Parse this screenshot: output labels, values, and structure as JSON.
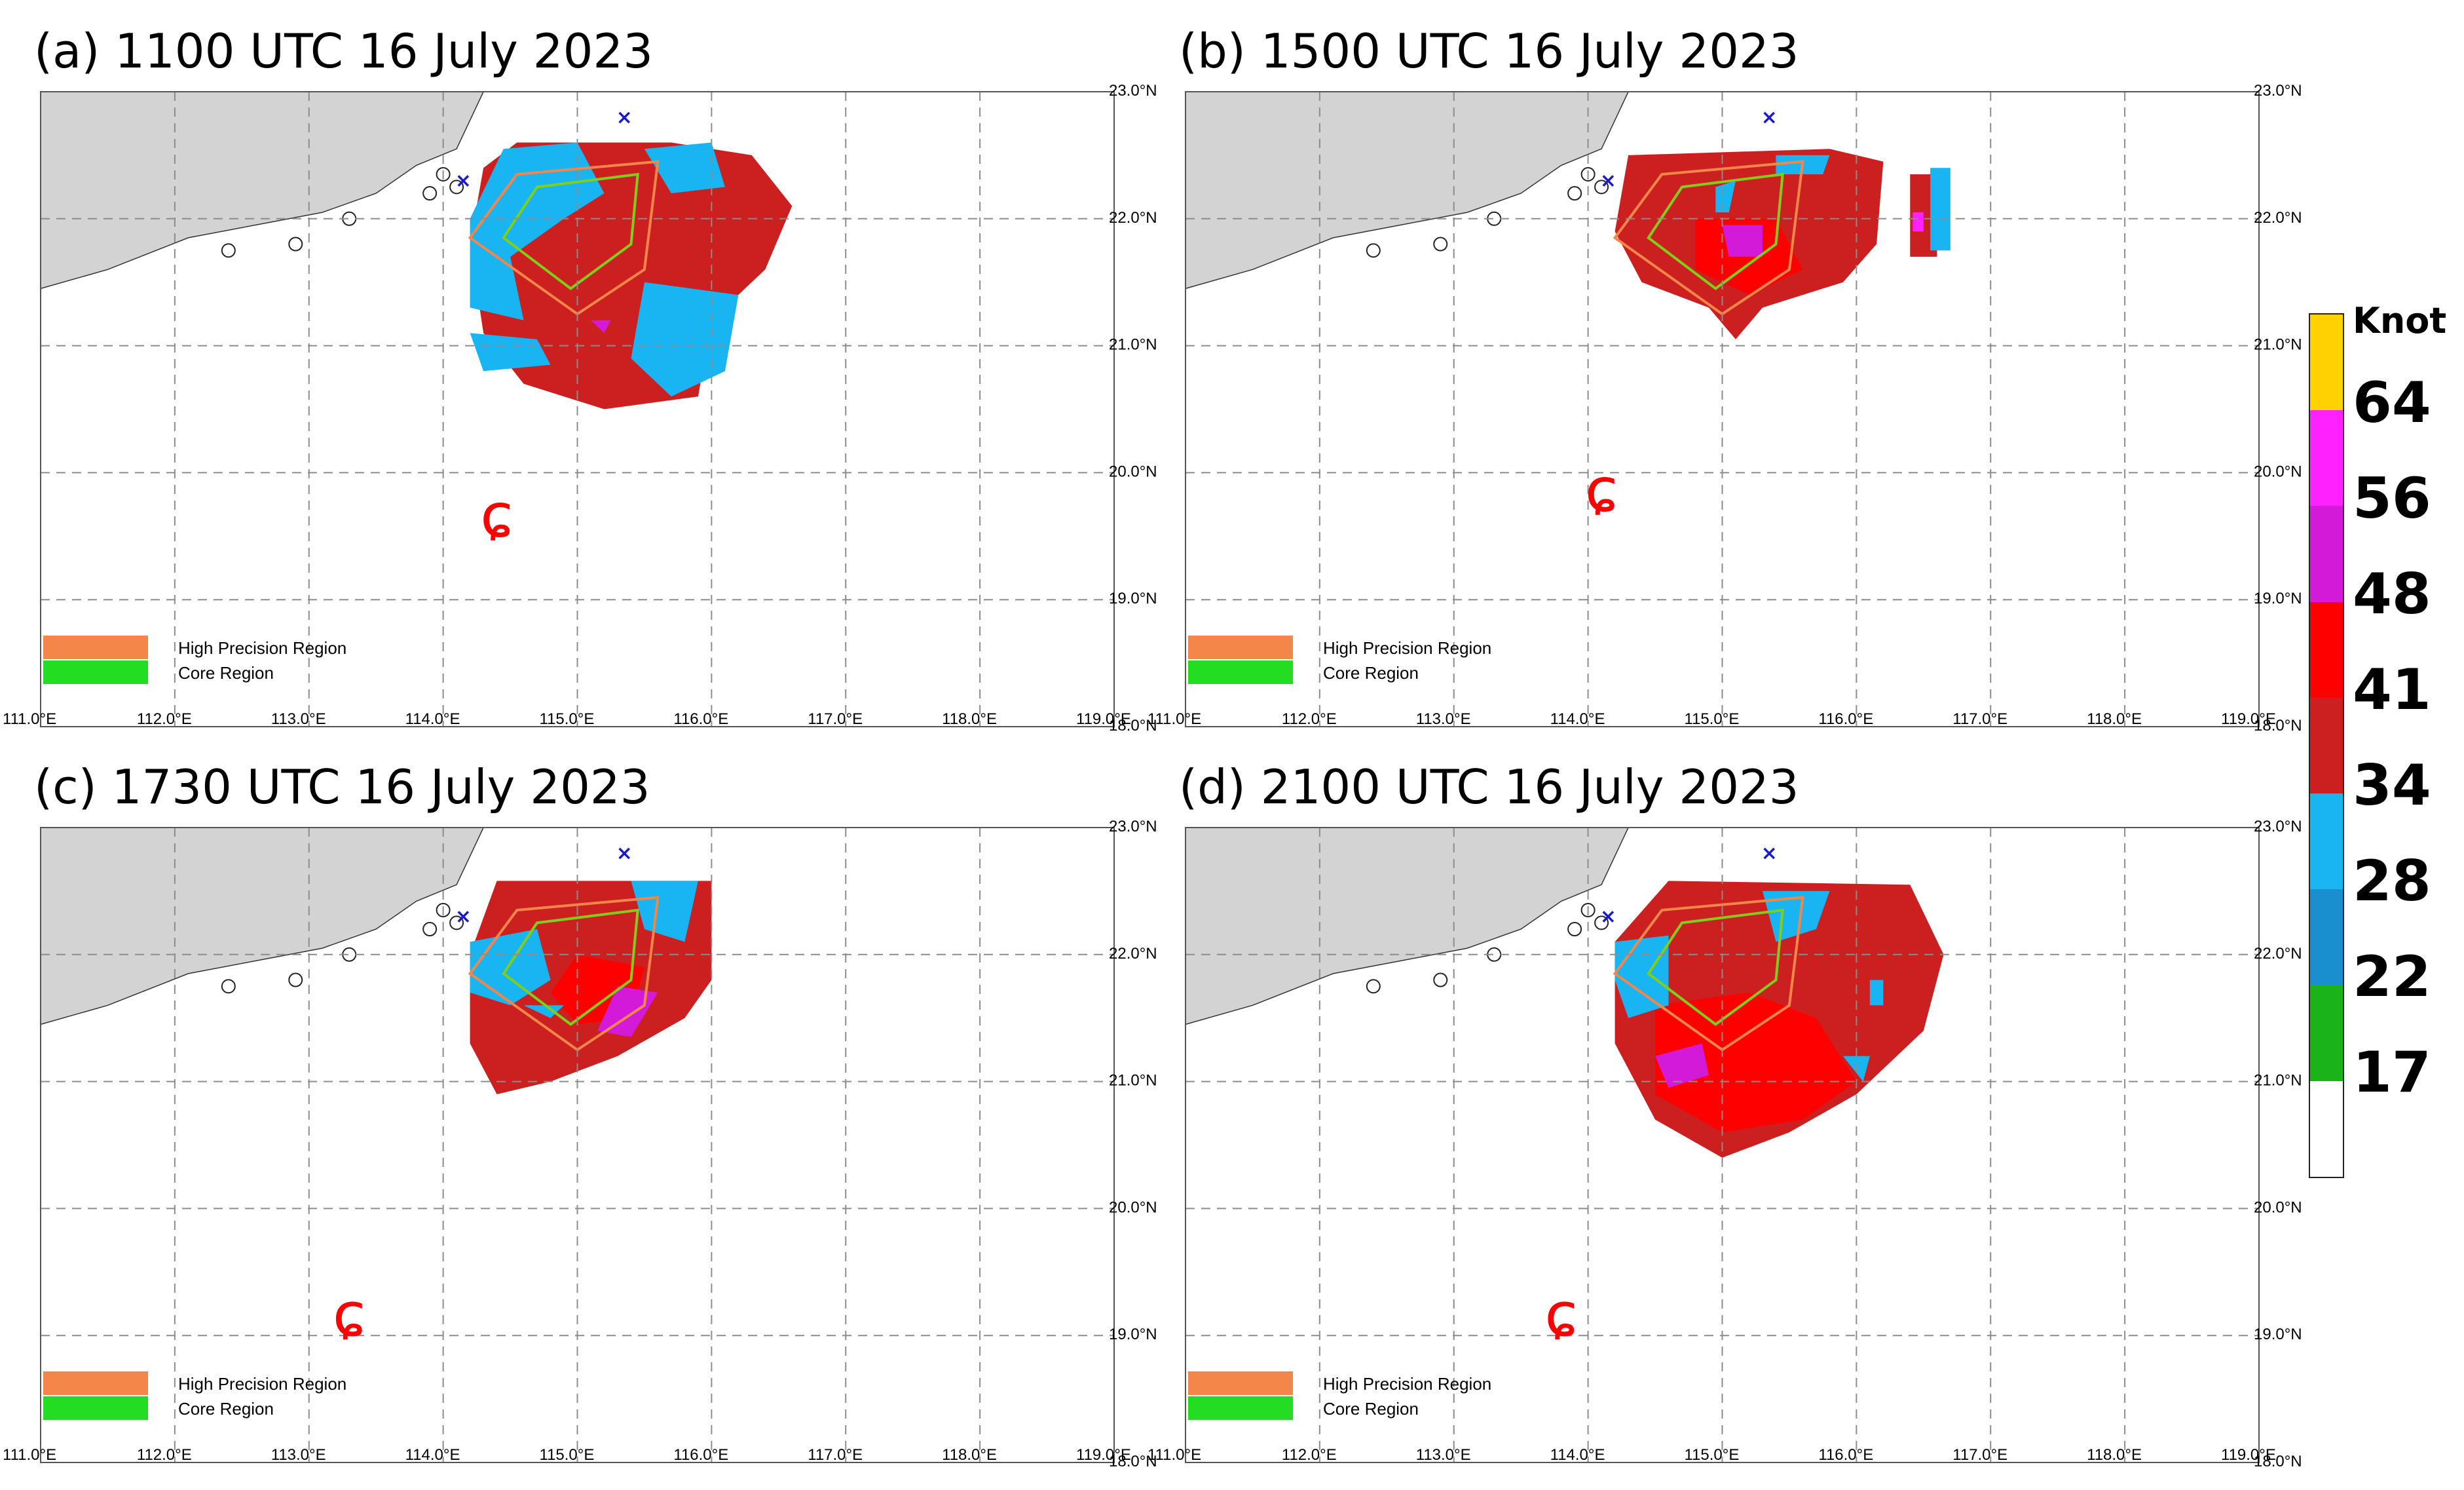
{
  "panels": [
    {
      "id": "a",
      "title": "(a) 1100 UTC 16 July 2023"
    },
    {
      "id": "b",
      "title": "(b) 1500 UTC 16 July 2023"
    },
    {
      "id": "c",
      "title": "(c) 1730 UTC 16 July 2023"
    },
    {
      "id": "d",
      "title": "(d) 2100 UTC 16 July 2023"
    }
  ],
  "map_axes": {
    "lon_labels": [
      "111.0°E",
      "112.0°E",
      "113.0°E",
      "114.0°E",
      "115.0°E",
      "116.0°E",
      "117.0°E",
      "118.0°E",
      "119.0°E"
    ],
    "lat_labels": [
      "23.0°N",
      "22.0°N",
      "21.0°N",
      "20.0°N",
      "19.0°N",
      "18.0°N"
    ],
    "lon_range": [
      111.0,
      119.0
    ],
    "lat_range": [
      18.0,
      23.0
    ],
    "grid": "dashed"
  },
  "legend": {
    "high_precision": {
      "label": "High Precision Region",
      "color": "#f4864a"
    },
    "core": {
      "label": "Core Region",
      "color": "#22dd22"
    }
  },
  "colorbar": {
    "title": "Knot",
    "labels": [
      "64",
      "56",
      "48",
      "41",
      "34",
      "28",
      "22",
      "17"
    ],
    "colors": [
      "#ffd200",
      "#ff22ff",
      "#d21ad8",
      "#ff0000",
      "#cc1f1f",
      "#19b5f2",
      "#1a8fd0",
      "#1ab31a",
      "#ffffff"
    ]
  },
  "colors": {
    "land": "#d3d3d3",
    "wind_34": "#cc1f1f",
    "wind_41": "#ff0000",
    "wind_28": "#19b5f2",
    "wind_48": "#d21ad8",
    "wind_56": "#ff22ff",
    "typhoon_symbol": "#ff0000",
    "station_marker": "#1a1acc"
  },
  "typhoon_symbol": "ɕ"
}
